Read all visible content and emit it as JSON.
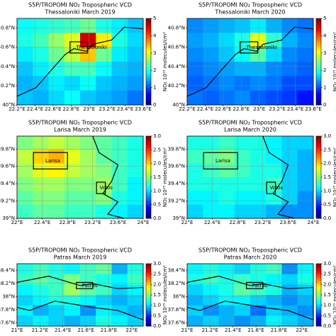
{
  "chart_data": [
    {
      "type": "heatmap",
      "title": "S5P/TROPOMI NO₂ Tropospheric VCD",
      "subtitle": "Thessaloniki March 2019",
      "labels": [
        "Thessaloniki"
      ],
      "colorbar_label": "NO₂ 10¹⁵ molecules/cm²",
      "colormap": "jet",
      "grid": true,
      "xlim": [
        22.2,
        23.6
      ],
      "ylim": [
        40,
        40.9
      ],
      "clim": [
        0,
        5
      ],
      "xticks": [
        {
          "value": 22.2,
          "label": "22.2°E"
        },
        {
          "value": 22.4,
          "label": "22.4°E"
        },
        {
          "value": 22.6,
          "label": "22.6°E"
        },
        {
          "value": 22.8,
          "label": "22.8°E"
        },
        {
          "value": 23,
          "label": "23°E"
        },
        {
          "value": 23.2,
          "label": "23.2°E"
        },
        {
          "value": 23.4,
          "label": "23.4°E"
        },
        {
          "value": 23.6,
          "label": "23.6°E"
        }
      ],
      "yticks": [
        {
          "value": 40,
          "label": "40°N"
        },
        {
          "value": 40.2,
          "label": "40.2°N"
        },
        {
          "value": 40.4,
          "label": "40.4°N"
        },
        {
          "value": 40.6,
          "label": "40.6°N"
        },
        {
          "value": 40.8,
          "label": "40.8°N"
        }
      ],
      "cticks": [
        0,
        1,
        2,
        3,
        4,
        5
      ],
      "values": [
        [
          1.9,
          2.0,
          2.1,
          2.2,
          2.4,
          2.0,
          1.8,
          1.6
        ],
        [
          2.0,
          2.2,
          2.6,
          3.0,
          4.6,
          3.2,
          2.0,
          1.7
        ],
        [
          1.8,
          2.0,
          2.4,
          2.8,
          3.4,
          2.4,
          1.8,
          1.6
        ],
        [
          1.6,
          1.8,
          2.0,
          2.2,
          2.2,
          1.9,
          1.6,
          1.5
        ],
        [
          1.5,
          1.6,
          1.8,
          1.7,
          1.9,
          1.6,
          1.5,
          1.4
        ],
        [
          1.6,
          1.5,
          1.7,
          1.9,
          1.6,
          1.5,
          1.4,
          1.2
        ]
      ]
    },
    {
      "type": "heatmap",
      "title": "S5P/TROPOMI NO₂ Tropospheric VCD",
      "subtitle": "Thessaloniki March 2020",
      "labels": [
        "Thessaloniki"
      ],
      "colorbar_label": "NO₂ 10¹⁵ molecules/cm²",
      "colormap": "jet",
      "grid": true,
      "xlim": [
        22.2,
        23.6
      ],
      "ylim": [
        40,
        40.9
      ],
      "clim": [
        0,
        5
      ],
      "xticks": [
        {
          "value": 22.2,
          "label": "22.2°E"
        },
        {
          "value": 22.4,
          "label": "22.4°E"
        },
        {
          "value": 22.6,
          "label": "22.6°E"
        },
        {
          "value": 22.8,
          "label": "22.8°E"
        },
        {
          "value": 23,
          "label": "23°E"
        },
        {
          "value": 23.2,
          "label": "23.2°E"
        },
        {
          "value": 23.4,
          "label": "23.4°E"
        },
        {
          "value": 23.6,
          "label": "23.6°E"
        }
      ],
      "yticks": [
        {
          "value": 40,
          "label": "40°N"
        },
        {
          "value": 40.2,
          "label": "40.2°N"
        },
        {
          "value": 40.4,
          "label": "40.4°N"
        },
        {
          "value": 40.6,
          "label": "40.6°N"
        },
        {
          "value": 40.8,
          "label": "40.8°N"
        }
      ],
      "cticks": [
        0,
        1,
        2,
        3,
        4,
        5
      ],
      "values": [
        [
          1.3,
          1.4,
          1.5,
          1.6,
          1.8,
          1.5,
          1.3,
          1.2
        ],
        [
          1.4,
          1.5,
          1.7,
          2.0,
          3.0,
          2.1,
          1.5,
          1.3
        ],
        [
          1.3,
          1.4,
          1.6,
          1.9,
          2.3,
          1.7,
          1.3,
          1.2
        ],
        [
          1.2,
          1.3,
          1.4,
          1.5,
          1.5,
          1.3,
          1.2,
          1.1
        ],
        [
          1.1,
          1.2,
          1.3,
          1.2,
          1.3,
          1.2,
          1.0,
          1.0
        ],
        [
          1.2,
          1.1,
          1.2,
          1.3,
          1.1,
          1.0,
          0.9,
          0.7
        ]
      ]
    },
    {
      "type": "heatmap",
      "title": "S5P/TROPOMI NO₂ Tropospheric VCD",
      "subtitle": "Larisa March 2019",
      "labels": [
        "Larisa",
        "Volos"
      ],
      "colorbar_label": "NO₂ 10¹⁵ molecules/cm²",
      "colormap": "jet",
      "grid": true,
      "xlim": [
        22,
        24
      ],
      "ylim": [
        39,
        39.95
      ],
      "clim": [
        0,
        3
      ],
      "xticks": [
        {
          "value": 22,
          "label": "22°E"
        },
        {
          "value": 22.4,
          "label": "22.4°E"
        },
        {
          "value": 22.8,
          "label": "22.8°E"
        },
        {
          "value": 23.2,
          "label": "23.2°E"
        },
        {
          "value": 23.6,
          "label": "23.6°E"
        },
        {
          "value": 24,
          "label": "24°E"
        }
      ],
      "yticks": [
        {
          "value": 39,
          "label": "39°N"
        },
        {
          "value": 39.2,
          "label": "39.2°N"
        },
        {
          "value": 39.4,
          "label": "39.4°N"
        },
        {
          "value": 39.6,
          "label": "39.6°N"
        },
        {
          "value": 39.8,
          "label": "39.8°N"
        }
      ],
      "cticks": [
        {
          "value": 0,
          "label": "0.0"
        },
        {
          "value": 0.5,
          "label": "0.5"
        },
        {
          "value": 1,
          "label": "1.0"
        },
        {
          "value": 1.5,
          "label": "1.5"
        },
        {
          "value": 2,
          "label": "2.0"
        },
        {
          "value": 2.5,
          "label": "2.5"
        },
        {
          "value": 3,
          "label": "3.0"
        }
      ],
      "values": [
        [
          1.5,
          1.6,
          1.7,
          1.6,
          1.5,
          1.4,
          1.3,
          1.2
        ],
        [
          1.7,
          2.0,
          2.1,
          1.8,
          1.6,
          1.4,
          1.3,
          1.2
        ],
        [
          1.6,
          1.8,
          1.9,
          1.7,
          1.6,
          1.5,
          1.3,
          1.2
        ],
        [
          1.5,
          1.6,
          1.6,
          1.5,
          1.5,
          1.6,
          1.3,
          1.1
        ],
        [
          1.4,
          1.5,
          1.5,
          1.4,
          1.4,
          1.5,
          1.2,
          1.1
        ],
        [
          1.3,
          1.4,
          1.4,
          1.3,
          1.3,
          1.2,
          1.1,
          1.0
        ]
      ]
    },
    {
      "type": "heatmap",
      "title": "S5P/TROPOMI NO₂ Tropospheric VCD",
      "subtitle": "Larisa March 2020",
      "labels": [
        "Larisa",
        "Volos"
      ],
      "colorbar_label": "NO₂ 10¹⁵ molecules/cm²",
      "colormap": "jet",
      "grid": true,
      "xlim": [
        22,
        24
      ],
      "ylim": [
        39,
        39.95
      ],
      "clim": [
        0,
        3
      ],
      "xticks": [
        {
          "value": 22,
          "label": "22°E"
        },
        {
          "value": 22.4,
          "label": "22.4°E"
        },
        {
          "value": 22.8,
          "label": "22.8°E"
        },
        {
          "value": 23.2,
          "label": "23.2°E"
        },
        {
          "value": 23.6,
          "label": "23.6°E"
        },
        {
          "value": 24,
          "label": "24°E"
        }
      ],
      "yticks": [
        {
          "value": 39,
          "label": "39°N"
        },
        {
          "value": 39.2,
          "label": "39.2°N"
        },
        {
          "value": 39.4,
          "label": "39.4°N"
        },
        {
          "value": 39.6,
          "label": "39.6°N"
        },
        {
          "value": 39.8,
          "label": "39.8°N"
        }
      ],
      "cticks": [
        {
          "value": 0,
          "label": "0.0"
        },
        {
          "value": 0.5,
          "label": "0.5"
        },
        {
          "value": 1,
          "label": "1.0"
        },
        {
          "value": 1.5,
          "label": "1.5"
        },
        {
          "value": 2,
          "label": "2.0"
        },
        {
          "value": 2.5,
          "label": "2.5"
        },
        {
          "value": 3,
          "label": "3.0"
        }
      ],
      "values": [
        [
          1.2,
          1.2,
          1.3,
          1.2,
          1.2,
          1.1,
          1.0,
          1.0
        ],
        [
          1.3,
          1.4,
          1.5,
          1.3,
          1.2,
          1.1,
          1.0,
          0.9
        ],
        [
          1.2,
          1.3,
          1.4,
          1.3,
          1.2,
          1.2,
          1.0,
          0.9
        ],
        [
          1.2,
          1.2,
          1.2,
          1.2,
          1.2,
          1.3,
          1.0,
          0.9
        ],
        [
          1.1,
          1.1,
          1.2,
          1.1,
          1.1,
          1.2,
          1.0,
          0.8
        ],
        [
          1.0,
          1.1,
          1.1,
          1.0,
          1.0,
          0.9,
          0.8,
          0.8
        ]
      ]
    },
    {
      "type": "heatmap",
      "title": "S5P/TROPOMI NO₂ Tropospheric VCD",
      "subtitle": "Patras March 2019",
      "labels": [
        "Patras"
      ],
      "colorbar_label": "NO₂ 10¹⁵ molecules/cm²",
      "colormap": "jet",
      "grid": true,
      "xlim": [
        21,
        22.1
      ],
      "ylim": [
        37.55,
        38.5
      ],
      "clim": [
        0,
        3
      ],
      "xticks": [
        {
          "value": 21,
          "label": "21°E"
        },
        {
          "value": 21.2,
          "label": "21.2°E"
        },
        {
          "value": 21.4,
          "label": "21.4°E"
        },
        {
          "value": 21.6,
          "label": "21.6°E"
        },
        {
          "value": 21.8,
          "label": "21.8°E"
        },
        {
          "value": 22,
          "label": "22°E"
        }
      ],
      "yticks": [
        {
          "value": 37.6,
          "label": "37.6°N"
        },
        {
          "value": 37.8,
          "label": "37.8°N"
        },
        {
          "value": 38,
          "label": "38°N"
        },
        {
          "value": 38.2,
          "label": "38.2°N"
        },
        {
          "value": 38.4,
          "label": "38.4°N"
        }
      ],
      "cticks": [
        {
          "value": 0,
          "label": "0.0"
        },
        {
          "value": 0.5,
          "label": "0.5"
        },
        {
          "value": 1,
          "label": "1.0"
        },
        {
          "value": 1.5,
          "label": "1.5"
        },
        {
          "value": 2,
          "label": "2.0"
        },
        {
          "value": 2.5,
          "label": "2.5"
        },
        {
          "value": 3,
          "label": "3.0"
        }
      ],
      "values": [
        [
          1.2,
          1.3,
          1.2,
          1.1,
          1.3,
          1.4,
          0.9,
          1.2
        ],
        [
          1.3,
          1.4,
          1.3,
          1.5,
          1.3,
          1.2,
          1.1,
          1.3
        ],
        [
          1.1,
          1.2,
          1.3,
          1.6,
          1.4,
          1.3,
          1.0,
          1.1
        ],
        [
          1.0,
          1.1,
          1.2,
          1.2,
          1.1,
          1.0,
          0.9,
          1.0
        ],
        [
          1.1,
          0.9,
          1.0,
          1.1,
          0.8,
          1.1,
          1.0,
          0.9
        ],
        [
          1.0,
          1.1,
          1.0,
          0.9,
          1.0,
          1.2,
          1.1,
          1.0
        ]
      ]
    },
    {
      "type": "heatmap",
      "title": "S5P/TROPOMI NO₂ Tropospheric VCD",
      "subtitle": "Patras March 2020",
      "labels": [
        "Patras"
      ],
      "colorbar_label": "NO₂ 10¹⁵ molecules/cm²",
      "colormap": "jet",
      "grid": true,
      "xlim": [
        21,
        22.1
      ],
      "ylim": [
        37.55,
        38.5
      ],
      "clim": [
        0,
        3
      ],
      "xticks": [
        {
          "value": 21,
          "label": "21°E"
        },
        {
          "value": 21.2,
          "label": "21.2°E"
        },
        {
          "value": 21.4,
          "label": "21.4°E"
        },
        {
          "value": 21.6,
          "label": "21.6°E"
        },
        {
          "value": 21.8,
          "label": "21.8°E"
        },
        {
          "value": 22,
          "label": "22°E"
        }
      ],
      "yticks": [
        {
          "value": 37.6,
          "label": "37.6°N"
        },
        {
          "value": 37.8,
          "label": "37.8°N"
        },
        {
          "value": 38,
          "label": "38°N"
        },
        {
          "value": 38.2,
          "label": "38.2°N"
        },
        {
          "value": 38.4,
          "label": "38.4°N"
        }
      ],
      "cticks": [
        {
          "value": 0,
          "label": "0.0"
        },
        {
          "value": 0.5,
          "label": "0.5"
        },
        {
          "value": 1,
          "label": "1.0"
        },
        {
          "value": 1.5,
          "label": "1.5"
        },
        {
          "value": 2,
          "label": "2.0"
        },
        {
          "value": 2.5,
          "label": "2.5"
        },
        {
          "value": 3,
          "label": "3.0"
        }
      ],
      "values": [
        [
          1.1,
          1.2,
          1.1,
          1.0,
          1.2,
          1.3,
          0.8,
          1.1
        ],
        [
          1.2,
          1.3,
          1.2,
          1.3,
          1.2,
          1.1,
          1.0,
          1.2
        ],
        [
          1.0,
          1.1,
          1.2,
          1.4,
          1.3,
          1.2,
          0.9,
          1.0
        ],
        [
          0.9,
          1.0,
          1.1,
          1.1,
          1.0,
          0.9,
          0.8,
          0.9
        ],
        [
          1.0,
          0.8,
          0.9,
          1.0,
          0.7,
          1.0,
          0.9,
          0.8
        ],
        [
          0.9,
          1.0,
          0.9,
          0.8,
          0.9,
          1.1,
          1.0,
          0.9
        ]
      ]
    }
  ]
}
